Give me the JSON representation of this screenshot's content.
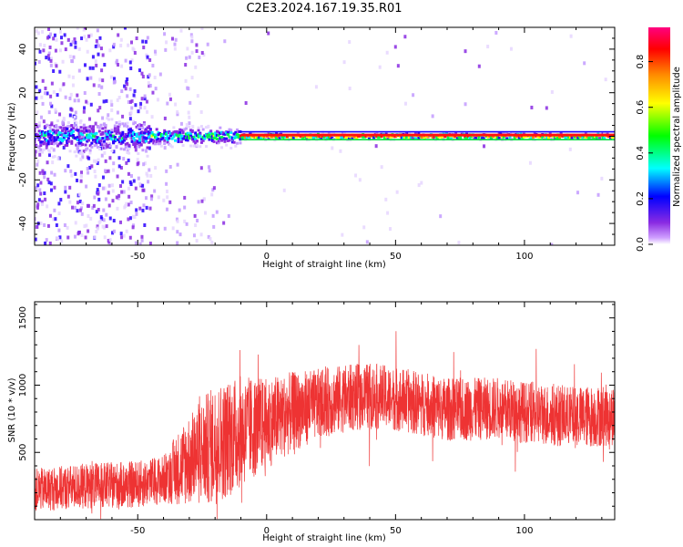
{
  "title": "C2E3.2024.167.19.35.R01",
  "chart_data": [
    {
      "type": "heatmap",
      "xlabel": "Height of straight line (km)",
      "ylabel": "Frequency (Hz)",
      "xlim": [
        -90,
        135
      ],
      "ylim": [
        -50,
        50
      ],
      "xticks": [
        -50,
        0,
        50,
        100
      ],
      "yticks": [
        -40,
        -20,
        0,
        20,
        40
      ],
      "colorbar": {
        "label": "Normalized spectral amplitude",
        "range": [
          0.0,
          0.95
        ],
        "ticks": [
          0.0,
          0.2,
          0.4,
          0.6,
          0.8
        ],
        "colormap": [
          "#ffffff",
          "#9b30ff",
          "#0000ff",
          "#00ffff",
          "#00ff00",
          "#ffff00",
          "#ff8c00",
          "#ff0000",
          "#ff00ff"
        ]
      },
      "features": [
        {
          "x": [
            -90,
            -45
          ],
          "band_halfwidth_hz": 5,
          "amplitude": 0.45,
          "noise": "dense"
        },
        {
          "x": [
            -45,
            -10
          ],
          "band_halfwidth_hz": 3,
          "amplitude": 0.55,
          "noise": "moderate"
        },
        {
          "x": [
            -10,
            135
          ],
          "band_halfwidth_hz": 1,
          "amplitude": 0.92,
          "noise": "sparse"
        }
      ]
    },
    {
      "type": "line",
      "xlabel": "Height of straight line (km)",
      "ylabel": "SNR (10 * v/v)",
      "xlim": [
        -90,
        135
      ],
      "ylim": [
        0,
        1620
      ],
      "xticks": [
        -50,
        0,
        50,
        100
      ],
      "yticks": [
        500,
        1000,
        1500
      ],
      "color": "#ee3333",
      "trend": {
        "x": [
          -90,
          -70,
          -50,
          -40,
          -30,
          -20,
          -10,
          0,
          10,
          20,
          30,
          40,
          50,
          60,
          70,
          80,
          90,
          100,
          110,
          120,
          135
        ],
        "y": [
          220,
          250,
          260,
          300,
          450,
          560,
          650,
          720,
          800,
          860,
          900,
          920,
          900,
          860,
          820,
          820,
          830,
          800,
          780,
          760,
          780
        ]
      },
      "spread": {
        "x": [
          -90,
          -40,
          -30,
          -20,
          -10,
          0,
          20,
          50,
          100,
          135
        ],
        "y": [
          160,
          180,
          350,
          450,
          420,
          340,
          260,
          240,
          230,
          230
        ]
      }
    }
  ]
}
